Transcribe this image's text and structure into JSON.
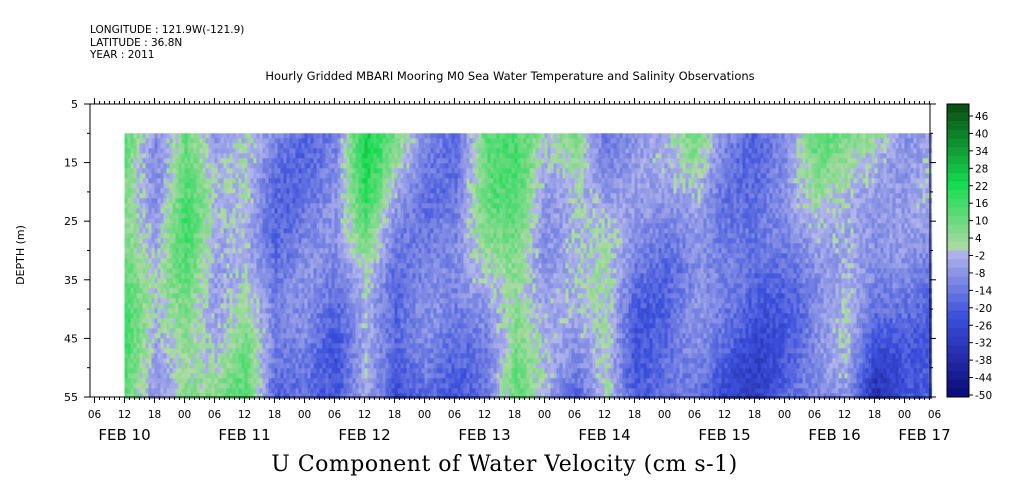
{
  "meta": {
    "longitude": "LONGITUDE : 121.9W(-121.9)",
    "latitude": "LATITUDE : 36.8N",
    "year": "YEAR : 2011"
  },
  "chart_data": {
    "type": "heatmap",
    "title": "Hourly Gridded MBARI Mooring M0 Sea Water Temperature and Salinity Observations",
    "xlabel": "U Component of Water Velocity (cm s-1)",
    "ylabel": "DEPTH (m)",
    "y_ticks": [
      5,
      15,
      25,
      35,
      45,
      55
    ],
    "ylim": [
      5,
      55
    ],
    "y_inverted": true,
    "data_depth_range": [
      10,
      55
    ],
    "x_hour_ticks": [
      "06",
      "12",
      "18",
      "00",
      "06",
      "12",
      "18",
      "00",
      "06",
      "12",
      "18",
      "00",
      "06",
      "12",
      "18",
      "00",
      "06",
      "12",
      "18",
      "00",
      "06",
      "12",
      "18",
      "00",
      "06",
      "12",
      "18",
      "00",
      "06",
      "12",
      "18",
      "00"
    ],
    "x_day_labels": [
      "FEB 10",
      "FEB 11",
      "FEB 12",
      "FEB 13",
      "FEB 14",
      "FEB 15",
      "FEB 16",
      "FEB 17"
    ],
    "colorbar": {
      "labels": [
        "46",
        "40",
        "34",
        "28",
        "22",
        "16",
        "10",
        "4",
        "-2",
        "-8",
        "-14",
        "-20",
        "-26",
        "-32",
        "-38",
        "-44",
        "-50"
      ],
      "min": -50,
      "max": 50
    },
    "time_bands": [
      {
        "day": "FEB 10 12:00",
        "u_top": 10,
        "u_bottom": 12
      },
      {
        "day": "FEB 10 18:00",
        "u_top": -6,
        "u_bottom": -4
      },
      {
        "day": "FEB 11 00:00",
        "u_top": 14,
        "u_bottom": 8
      },
      {
        "day": "FEB 11 06:00",
        "u_top": -8,
        "u_bottom": 2
      },
      {
        "day": "FEB 11 12:00",
        "u_top": -4,
        "u_bottom": 10
      },
      {
        "day": "FEB 11 18:00",
        "u_top": -12,
        "u_bottom": -18
      },
      {
        "day": "FEB 12 00:00",
        "u_top": -14,
        "u_bottom": -10
      },
      {
        "day": "FEB 12 06:00",
        "u_top": -8,
        "u_bottom": -20
      },
      {
        "day": "FEB 12 12:00",
        "u_top": 22,
        "u_bottom": -8
      },
      {
        "day": "FEB 12 18:00",
        "u_top": 4,
        "u_bottom": -28
      },
      {
        "day": "FEB 13 00:00",
        "u_top": -10,
        "u_bottom": -14
      },
      {
        "day": "FEB 13 06:00",
        "u_top": -12,
        "u_bottom": -16
      },
      {
        "day": "FEB 13 12:00",
        "u_top": 14,
        "u_bottom": -14
      },
      {
        "day": "FEB 13 18:00",
        "u_top": 12,
        "u_bottom": 8
      },
      {
        "day": "FEB 14 00:00",
        "u_top": -4,
        "u_bottom": -6
      },
      {
        "day": "FEB 14 06:00",
        "u_top": 10,
        "u_bottom": -16
      },
      {
        "day": "FEB 14 12:00",
        "u_top": -10,
        "u_bottom": 8
      },
      {
        "day": "FEB 14 18:00",
        "u_top": -6,
        "u_bottom": -22
      },
      {
        "day": "FEB 15 00:00",
        "u_top": -6,
        "u_bottom": -20
      },
      {
        "day": "FEB 15 06:00",
        "u_top": 6,
        "u_bottom": -18
      },
      {
        "day": "FEB 15 12:00",
        "u_top": -8,
        "u_bottom": -22
      },
      {
        "day": "FEB 15 18:00",
        "u_top": -14,
        "u_bottom": -26
      },
      {
        "day": "FEB 16 00:00",
        "u_top": -10,
        "u_bottom": -20
      },
      {
        "day": "FEB 16 06:00",
        "u_top": 8,
        "u_bottom": -16
      },
      {
        "day": "FEB 16 12:00",
        "u_top": 6,
        "u_bottom": -8
      },
      {
        "day": "FEB 16 18:00",
        "u_top": 6,
        "u_bottom": -32
      },
      {
        "day": "FEB 17 00:00",
        "u_top": -4,
        "u_bottom": -20
      }
    ],
    "colors": {
      "positive_max": "#0a4a12",
      "zero_low": "#b3d9a8",
      "zero_high": "#b4b8ea",
      "negative_max": "#0a0a78"
    }
  }
}
